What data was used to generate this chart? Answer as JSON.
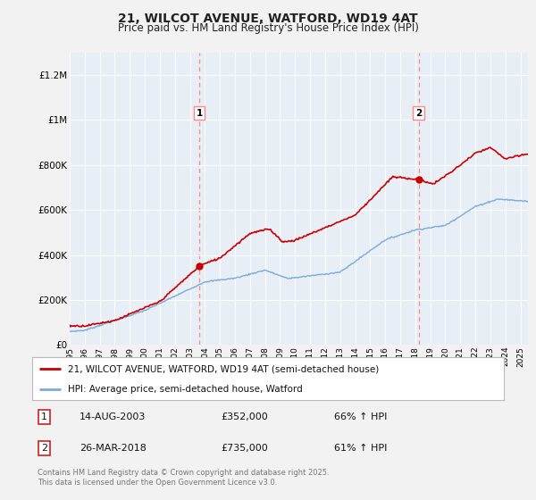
{
  "title_line1": "21, WILCOT AVENUE, WATFORD, WD19 4AT",
  "title_line2": "Price paid vs. HM Land Registry's House Price Index (HPI)",
  "ylabel_ticks": [
    "£0",
    "£200K",
    "£400K",
    "£600K",
    "£800K",
    "£1M",
    "£1.2M"
  ],
  "ytick_values": [
    0,
    200000,
    400000,
    600000,
    800000,
    1000000,
    1200000
  ],
  "ylim": [
    0,
    1300000
  ],
  "xlim_start": 1995.0,
  "xlim_end": 2025.5,
  "xtick_years": [
    1995,
    1996,
    1997,
    1998,
    1999,
    2000,
    2001,
    2002,
    2003,
    2004,
    2005,
    2006,
    2007,
    2008,
    2009,
    2010,
    2011,
    2012,
    2013,
    2014,
    2015,
    2016,
    2017,
    2018,
    2019,
    2020,
    2021,
    2022,
    2023,
    2024,
    2025
  ],
  "transaction1_x": 2003.62,
  "transaction1_y": 352000,
  "transaction1_label": "1",
  "transaction2_x": 2018.23,
  "transaction2_y": 735000,
  "transaction2_label": "2",
  "vline1_x": 2003.62,
  "vline2_x": 2018.23,
  "red_line_color": "#cc0000",
  "blue_line_color": "#7aabdb",
  "vline_color": "#ff8888",
  "legend_line1": "21, WILCOT AVENUE, WATFORD, WD19 4AT (semi-detached house)",
  "legend_line2": "HPI: Average price, semi-detached house, Watford",
  "annotation1_date": "14-AUG-2003",
  "annotation1_price": "£352,000",
  "annotation1_hpi": "66% ↑ HPI",
  "annotation2_date": "26-MAR-2018",
  "annotation2_price": "£735,000",
  "annotation2_hpi": "61% ↑ HPI",
  "footer": "Contains HM Land Registry data © Crown copyright and database right 2025.\nThis data is licensed under the Open Government Licence v3.0.",
  "bg_color": "#f2f2f2",
  "plot_bg_color": "#e8eef5",
  "grid_color": "#ffffff"
}
